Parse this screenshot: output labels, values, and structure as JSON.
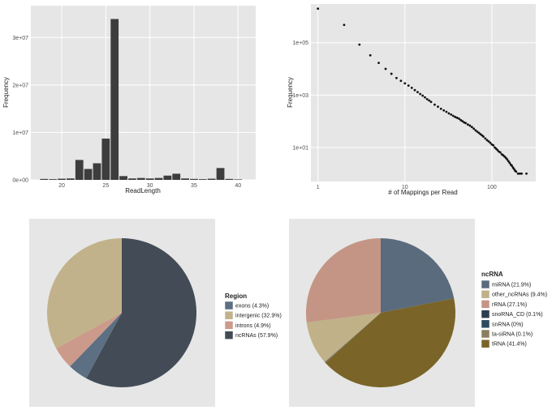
{
  "chart_data": [
    {
      "type": "bar",
      "title": "",
      "xlabel": "ReadLength",
      "ylabel": "Frequency",
      "xlim": [
        16.5,
        42
      ],
      "ylim": [
        0,
        35000000
      ],
      "x_ticks": [
        20,
        25,
        30,
        35,
        40
      ],
      "x_tick_labels": [
        "20",
        "25",
        "30",
        "35",
        "40"
      ],
      "y_ticks": [
        0,
        10000000,
        20000000,
        30000000
      ],
      "y_tick_labels": [
        "0e+00",
        "1e+07",
        "2e+07",
        "3e+07"
      ],
      "categories": [
        18,
        19,
        20,
        21,
        22,
        23,
        24,
        25,
        26,
        27,
        28,
        29,
        30,
        31,
        32,
        33,
        34,
        35,
        36,
        37,
        38,
        39,
        40
      ],
      "values": [
        200000,
        150000,
        250000,
        300000,
        4200000,
        2300000,
        3500000,
        8700000,
        33900000,
        800000,
        300000,
        400000,
        300000,
        400000,
        900000,
        1300000,
        300000,
        200000,
        150000,
        250000,
        2500000,
        200000,
        100000
      ]
    },
    {
      "type": "scatter",
      "title": "",
      "xlabel": "# of Mappings per Read",
      "ylabel": "Frequency",
      "x_scale": "log10",
      "y_scale": "log10",
      "xlim": [
        0.83,
        320
      ],
      "ylim": [
        0.5,
        3000000
      ],
      "x_ticks": [
        1,
        10,
        100
      ],
      "x_tick_labels": [
        "1",
        "10",
        "100"
      ],
      "y_ticks": [
        10,
        1000,
        100000
      ],
      "y_tick_labels": [
        "1e+01",
        "1e+03",
        "1e+05"
      ],
      "x": [
        1,
        2,
        3,
        4,
        5,
        6,
        7,
        8,
        9,
        10,
        11,
        12,
        13,
        14,
        15,
        16,
        17,
        18,
        19,
        20,
        22,
        24,
        26,
        28,
        30,
        32,
        34,
        36,
        38,
        40,
        42,
        44,
        46,
        48,
        50,
        53,
        56,
        59,
        62,
        65,
        68,
        71,
        74,
        77,
        80,
        84,
        88,
        92,
        96,
        100,
        104,
        108,
        112,
        116,
        120,
        125,
        130,
        135,
        140,
        145,
        150,
        155,
        160,
        165,
        170,
        175,
        180,
        185,
        190,
        200,
        210,
        220,
        250
      ],
      "y": [
        2000000,
        480000,
        85000,
        33000,
        17000,
        10000,
        6500,
        4500,
        3500,
        2800,
        2300,
        1900,
        1550,
        1300,
        1100,
        950,
        820,
        700,
        620,
        550,
        430,
        360,
        300,
        260,
        230,
        200,
        180,
        160,
        145,
        135,
        125,
        110,
        100,
        90,
        85,
        75,
        68,
        60,
        52,
        45,
        40,
        36,
        32,
        29,
        26,
        22,
        19,
        17,
        15,
        13,
        12,
        10,
        9,
        8,
        7,
        6.5,
        5.5,
        5,
        4.5,
        4,
        3.5,
        3,
        2.6,
        2.2,
        2,
        1.7,
        1.5,
        1.3,
        1.2,
        1,
        1,
        1,
        1
      ]
    },
    {
      "type": "pie",
      "legend_title": "Region",
      "labels": [
        "exons",
        "intergenic",
        "introns",
        "ncRNAs"
      ],
      "legend_labels": [
        "exons (4.3%)",
        "intergenic (32.9%)",
        "introns (4.9%)",
        "ncRNAs (57.9%)"
      ],
      "values": [
        4.3,
        32.9,
        4.9,
        57.9
      ],
      "colors": [
        "#5c6f83",
        "#c2b28b",
        "#cc9a8a",
        "#434c56"
      ],
      "draw_order": [
        3,
        0,
        2,
        1
      ]
    },
    {
      "type": "pie",
      "legend_title": "ncRNA",
      "labels": [
        "miRNA",
        "other_ncRNAs",
        "rRNA",
        "snoRNA_CD",
        "snRNA",
        "ta-siRNA",
        "tRNA"
      ],
      "legend_labels": [
        "miRNA (21.9%)",
        "other_ncRNAs (9.4%)",
        "rRNA (27.1%)",
        "snoRNA_CD (0.1%)",
        "snRNA (0%)",
        "ta-siRNA (0.1%)",
        "tRNA (41.4%)"
      ],
      "values": [
        21.9,
        9.4,
        27.1,
        0.1,
        0.0,
        0.1,
        41.4
      ],
      "colors": [
        "#5a6b7e",
        "#c0b188",
        "#c49585",
        "#2c3e50",
        "#2e4a5e",
        "#8a8060",
        "#7a6428"
      ],
      "draw_order": [
        0,
        6,
        5,
        4,
        3,
        1,
        2
      ]
    }
  ]
}
